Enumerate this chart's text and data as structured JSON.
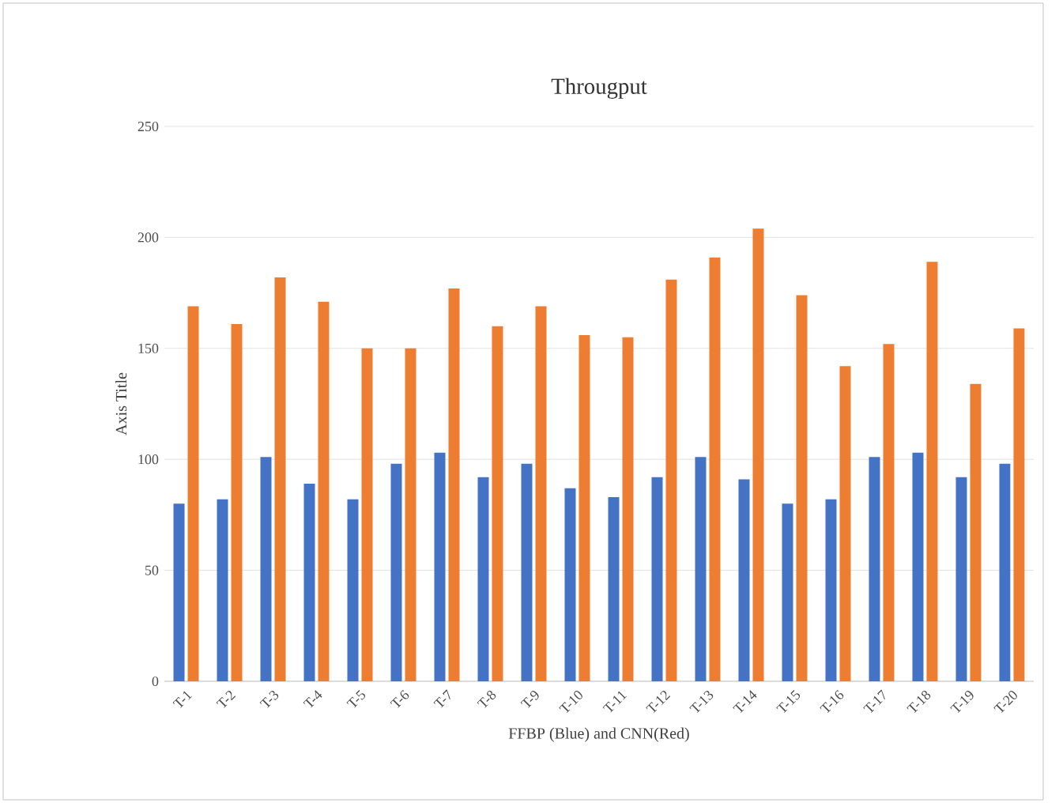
{
  "chart_data": {
    "type": "bar",
    "title": "Througput",
    "xlabel": "FFBP (Blue) and CNN(Red)",
    "ylabel": "Axis Title",
    "categories": [
      "T-1",
      "T-2",
      "T-3",
      "T-4",
      "T-5",
      "T-6",
      "T-7",
      "T-8",
      "T-9",
      "T-10",
      "T-11",
      "T-12",
      "T-13",
      "T-14",
      "T-15",
      "T-16",
      "T-17",
      "T-18",
      "T-19",
      "T-20"
    ],
    "series": [
      {
        "color": "#4472c4",
        "values": [
          80,
          82,
          101,
          89,
          82,
          98,
          103,
          92,
          98,
          87,
          83,
          92,
          101,
          91,
          80,
          82,
          101,
          103,
          92,
          98
        ]
      },
      {
        "color": "#ed7d31",
        "values": [
          169,
          161,
          182,
          171,
          150,
          150,
          177,
          160,
          169,
          156,
          155,
          181,
          191,
          204,
          174,
          142,
          152,
          189,
          134,
          159
        ]
      }
    ],
    "ylim": [
      0,
      250
    ],
    "yticks": [
      0,
      50,
      100,
      150,
      200,
      250
    ],
    "grid": "y"
  }
}
